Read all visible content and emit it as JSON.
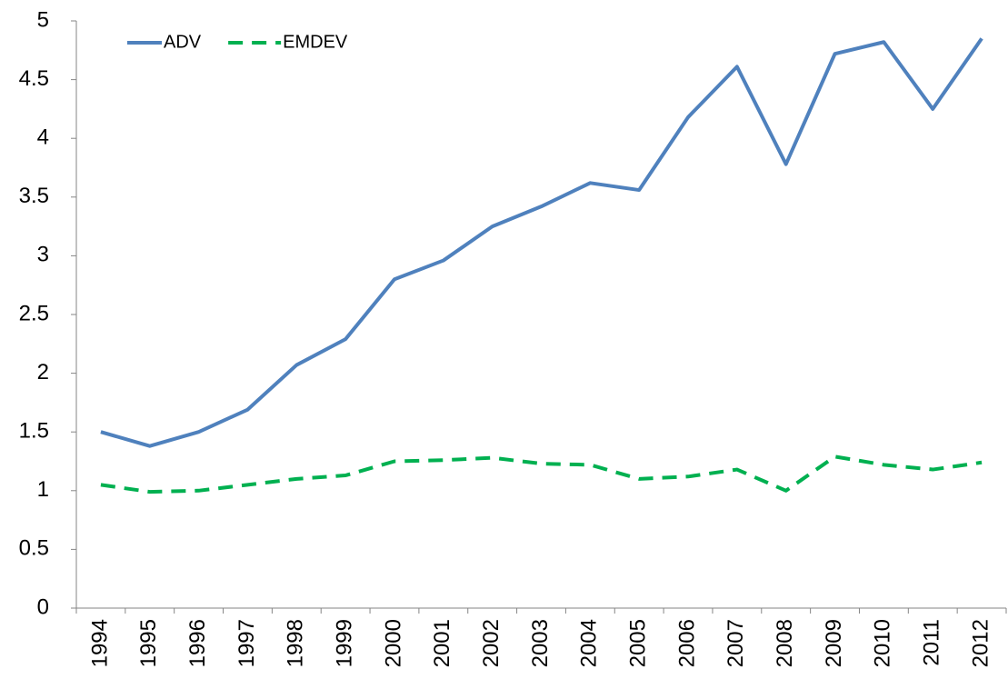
{
  "chart_data": {
    "type": "line",
    "categories": [
      "1994",
      "1995",
      "1996",
      "1997",
      "1998",
      "1999",
      "2000",
      "2001",
      "2002",
      "2003",
      "2004",
      "2005",
      "2006",
      "2007",
      "2008",
      "2009",
      "2010",
      "2011",
      "2012"
    ],
    "series": [
      {
        "name": "ADV",
        "color": "#4f81bd",
        "line_style": "solid",
        "values": [
          1.5,
          1.38,
          1.5,
          1.69,
          2.07,
          2.29,
          2.8,
          2.96,
          3.25,
          3.42,
          3.62,
          3.56,
          4.18,
          4.61,
          3.78,
          4.72,
          4.82,
          4.25,
          4.85
        ]
      },
      {
        "name": "EMDEV",
        "color": "#00b050",
        "line_style": "dashed",
        "values": [
          1.05,
          0.99,
          1.0,
          1.05,
          1.1,
          1.13,
          1.25,
          1.26,
          1.28,
          1.23,
          1.22,
          1.1,
          1.12,
          1.18,
          1.0,
          1.29,
          1.22,
          1.18,
          1.24
        ]
      }
    ],
    "ylim": [
      0,
      5
    ],
    "yticks": [
      0,
      0.5,
      1,
      1.5,
      2,
      2.5,
      3,
      3.5,
      4,
      4.5,
      5
    ],
    "grid": false,
    "legend": "top-left"
  }
}
